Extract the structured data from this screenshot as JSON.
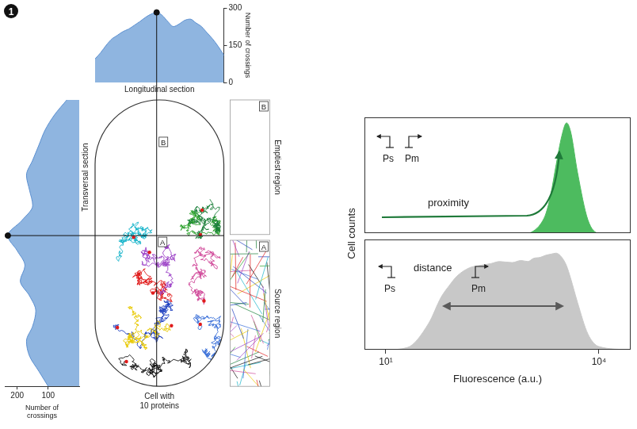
{
  "figure_label": "1",
  "cell_diagram": {
    "caption": "Cell with 10 proteins",
    "regions": [
      {
        "label": "B",
        "name": "Emptiest region"
      },
      {
        "label": "A",
        "name": "Source region"
      }
    ]
  },
  "chart_data": [
    {
      "type": "area",
      "title": "Longitudinal section",
      "y_label": "Number of crossings",
      "categories": [
        null,
        null,
        null,
        null,
        null,
        null,
        null,
        null,
        null,
        null,
        null,
        null,
        null,
        null,
        null,
        null,
        null,
        null,
        null,
        null,
        null,
        null,
        null,
        null
      ],
      "values": [
        95,
        120,
        150,
        175,
        190,
        205,
        215,
        230,
        245,
        262,
        275,
        282,
        270,
        245,
        225,
        235,
        250,
        255,
        240,
        225,
        200,
        175,
        145,
        110
      ],
      "color": "#8fb5e0",
      "ylim": [
        0,
        300
      ],
      "yticks": [
        0,
        150,
        300
      ],
      "grid": false,
      "tick_labels": "y",
      "marker": "dot"
    },
    {
      "type": "area",
      "orientation": "horizontal",
      "title": "Transversal section",
      "x_label": "Number of crossings",
      "categories": [
        null,
        null,
        null,
        null,
        null,
        null,
        null,
        null,
        null,
        null,
        null,
        null,
        null,
        null,
        null,
        null,
        null,
        null,
        null,
        null
      ],
      "values": [
        40,
        80,
        110,
        130,
        150,
        170,
        160,
        150,
        185,
        230,
        200,
        175,
        190,
        160,
        140,
        150,
        170,
        160,
        130,
        100
      ],
      "color": "#8fb5e0",
      "xlim": [
        0,
        240
      ],
      "xticks": [
        100,
        200
      ],
      "grid": false,
      "tick_labels": "x",
      "marker": "dot"
    },
    {
      "type": "area",
      "y_label": "Cell counts",
      "annotations": [
        "Ps",
        "Pm",
        "proximity"
      ],
      "x": [
        5,
        10,
        20,
        40,
        60,
        80,
        100,
        150,
        200,
        300,
        400,
        600,
        800,
        1000,
        1200,
        1500,
        1800,
        2100,
        2500,
        3000,
        3500,
        4000,
        5000,
        7000,
        10000,
        28000
      ],
      "values": [
        0,
        0,
        0,
        0,
        0,
        0,
        0,
        0,
        0,
        0,
        0,
        0,
        0,
        0,
        2,
        8,
        18,
        35,
        62,
        88,
        100,
        92,
        55,
        12,
        0,
        0
      ],
      "color": "#4dbb5f",
      "log": "x",
      "xlim": [
        5,
        28000
      ],
      "ylim": [
        0,
        105
      ],
      "grid": false,
      "tick_labels": false
    },
    {
      "type": "area",
      "x_label": "Fluorescence (a.u.)",
      "annotations": [
        "Ps",
        "distance",
        "Pm"
      ],
      "x": [
        5,
        10,
        20,
        40,
        60,
        80,
        100,
        150,
        200,
        300,
        400,
        600,
        800,
        1000,
        1200,
        1500,
        1800,
        2100,
        2500,
        3000,
        3500,
        4000,
        5000,
        7000,
        10000,
        28000
      ],
      "values": [
        0,
        0,
        2,
        25,
        50,
        62,
        70,
        78,
        80,
        82,
        84,
        83,
        85,
        84,
        87,
        88,
        90,
        91,
        92,
        88,
        80,
        68,
        45,
        15,
        3,
        0
      ],
      "color": "#c8c8c8",
      "log": "x",
      "xlim": [
        5,
        28000
      ],
      "xticks": [
        {
          "value": 10,
          "label": "10¹"
        },
        {
          "value": 10000,
          "label": "10⁴"
        }
      ],
      "ylim": [
        0,
        105
      ],
      "grid": false,
      "tick_labels": "x"
    }
  ]
}
